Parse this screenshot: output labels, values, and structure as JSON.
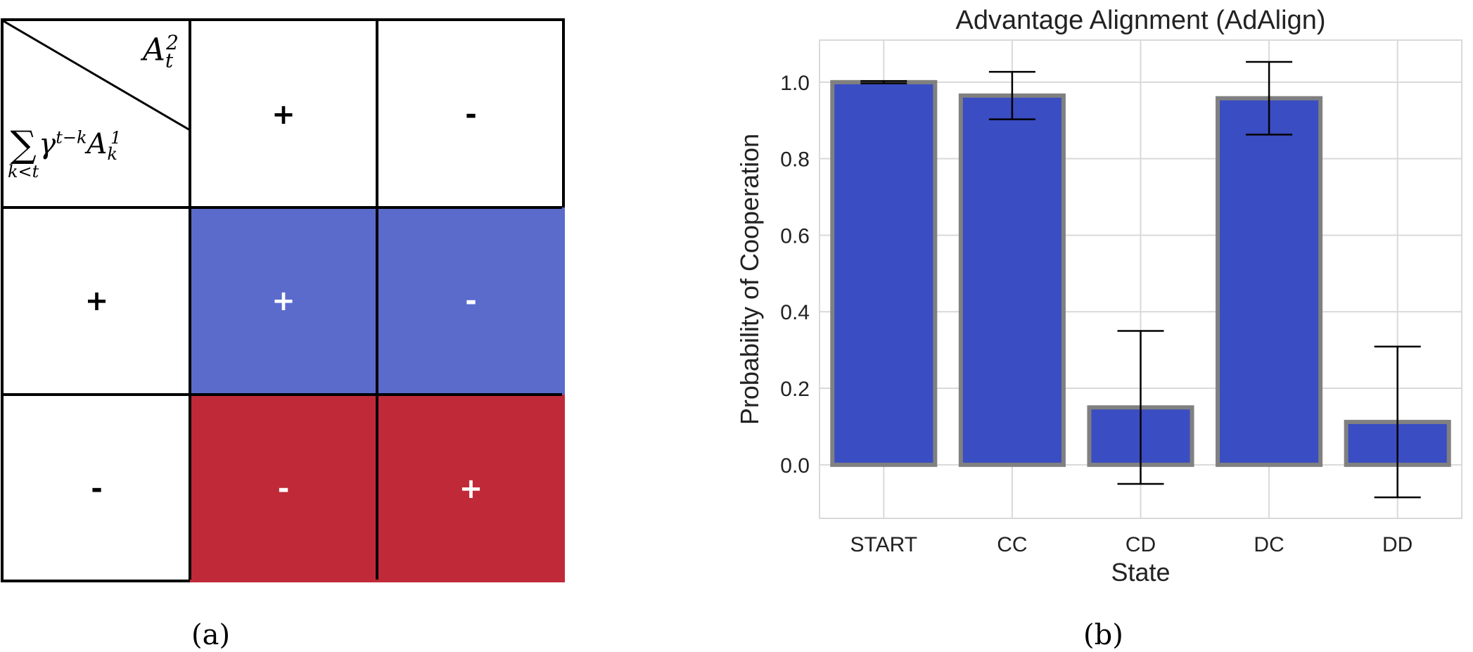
{
  "panel_a": {
    "caption": "(a)",
    "header_col_label": "A_t^2",
    "header_row_label": "sum_{k<t} gamma^{t-k} A_k^1",
    "col_headers": [
      "+",
      "-"
    ],
    "row_headers": [
      "+",
      "-"
    ],
    "cells": [
      [
        "+",
        "-"
      ],
      [
        "-",
        "+"
      ]
    ],
    "row_colors": [
      "#5a6bcc",
      "#c02a38"
    ],
    "sign_color_light": "#ffffff",
    "sign_color_dark": "#000000"
  },
  "panel_b": {
    "caption": "(b)"
  },
  "chart_data": {
    "type": "bar",
    "title": "Advantage Alignment (AdAlign)",
    "xlabel": "State",
    "ylabel": "Probability of Cooperation",
    "categories": [
      "START",
      "CC",
      "CD",
      "DC",
      "DD"
    ],
    "values": [
      1.0,
      0.965,
      0.15,
      0.958,
      0.112
    ],
    "error": [
      0.003,
      0.062,
      0.2,
      0.095,
      0.197
    ],
    "ylim": [
      -0.14,
      1.11
    ],
    "yticks": [
      0.0,
      0.2,
      0.4,
      0.6,
      0.8,
      1.0
    ],
    "ytick_labels": [
      "0.0",
      "0.2",
      "0.4",
      "0.6",
      "0.8",
      "1.0"
    ],
    "grid": true,
    "bar_color": "#3a4dc2",
    "bar_edge_color": "#808080",
    "grid_color": "#d9d9d9"
  }
}
